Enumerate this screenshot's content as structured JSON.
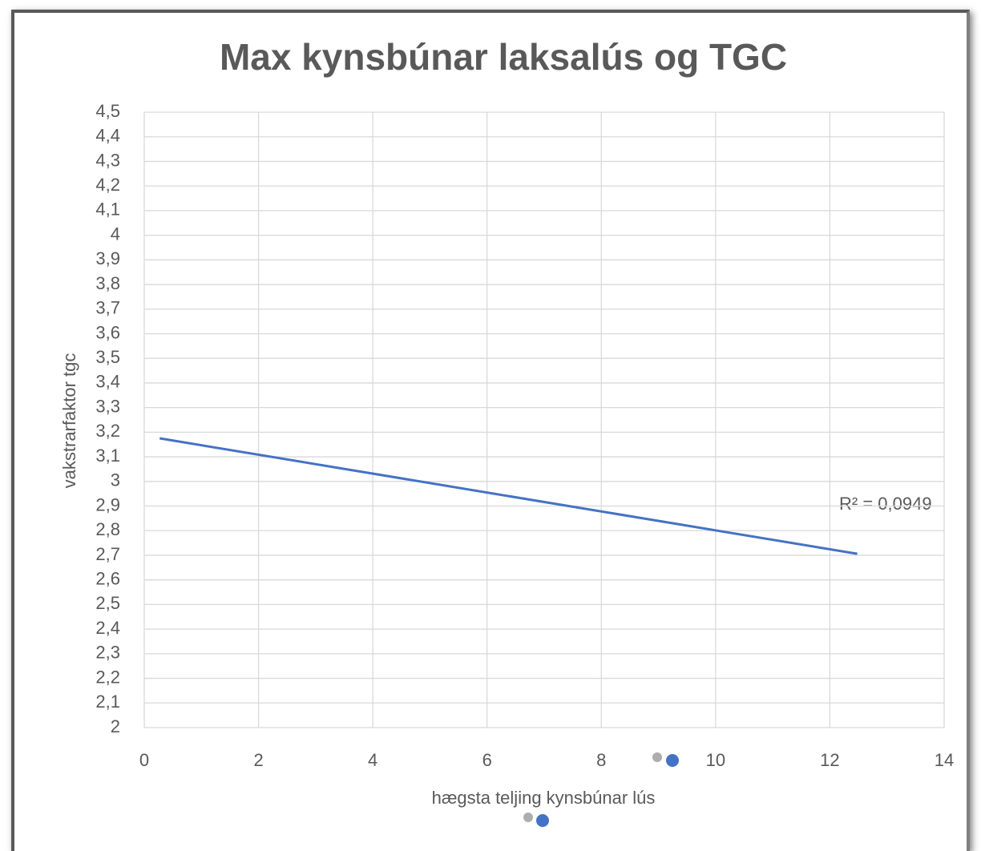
{
  "chart_data": {
    "type": "line",
    "title": "Max kynsbúnar laksalús og TGC",
    "x_label": "hægsta teljing kynsbúnar lús",
    "y_label": "vakstrarfaktor tgc",
    "annotation": "R² = 0,0949",
    "x": [
      0.27,
      12.48
    ],
    "values": [
      3.175,
      2.706
    ],
    "color": "#4472c4",
    "xlim": [
      0,
      14
    ],
    "xticks": [
      0,
      2,
      4,
      6,
      8,
      10,
      12,
      14
    ],
    "ylim": [
      2,
      4.5
    ],
    "yticks": [
      2,
      {
        "value": 2.1,
        "label": "2,1"
      },
      {
        "value": 2.2,
        "label": "2,2"
      },
      {
        "value": 2.3,
        "label": "2,3"
      },
      {
        "value": 2.4,
        "label": "2,4"
      },
      {
        "value": 2.5,
        "label": "2,5"
      },
      {
        "value": 2.6,
        "label": "2,6"
      },
      {
        "value": 2.7,
        "label": "2,7"
      },
      {
        "value": 2.8,
        "label": "2,8"
      },
      {
        "value": 2.9,
        "label": "2,9"
      },
      3,
      {
        "value": 3.1,
        "label": "3,1"
      },
      {
        "value": 3.2,
        "label": "3,2"
      },
      {
        "value": 3.3,
        "label": "3,3"
      },
      {
        "value": 3.4,
        "label": "3,4"
      },
      {
        "value": 3.5,
        "label": "3,5"
      },
      {
        "value": 3.6,
        "label": "3,6"
      },
      {
        "value": 3.7,
        "label": "3,7"
      },
      {
        "value": 3.8,
        "label": "3,8"
      },
      {
        "value": 3.9,
        "label": "3,9"
      },
      4,
      {
        "value": 4.1,
        "label": "4,1"
      },
      {
        "value": 4.2,
        "label": "4,2"
      },
      {
        "value": 4.3,
        "label": "4,3"
      },
      {
        "value": 4.4,
        "label": "4,4"
      },
      {
        "value": 4.5,
        "label": "4,5"
      }
    ],
    "grid": true
  }
}
